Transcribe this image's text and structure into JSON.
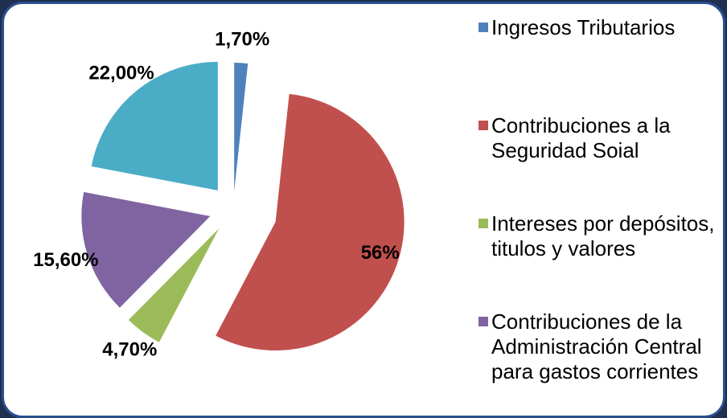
{
  "chart_data": {
    "type": "pie",
    "categories": [
      "Ingresos Tributarios",
      "Contribuciones a la Seguridad Soial",
      "Intereses por depósitos, titulos y valores",
      "Contribuciones de la Administración Central para gastos corrientes",
      null
    ],
    "values": [
      1.7,
      56,
      4.7,
      15.6,
      22
    ],
    "value_labels": [
      "1,70%",
      "56%",
      "4,70%",
      "15,60%",
      "22,00%"
    ],
    "colors": [
      "#4f81bd",
      "#c0504d",
      "#9bbb59",
      "#8064a2",
      "#4bacc6"
    ]
  }
}
